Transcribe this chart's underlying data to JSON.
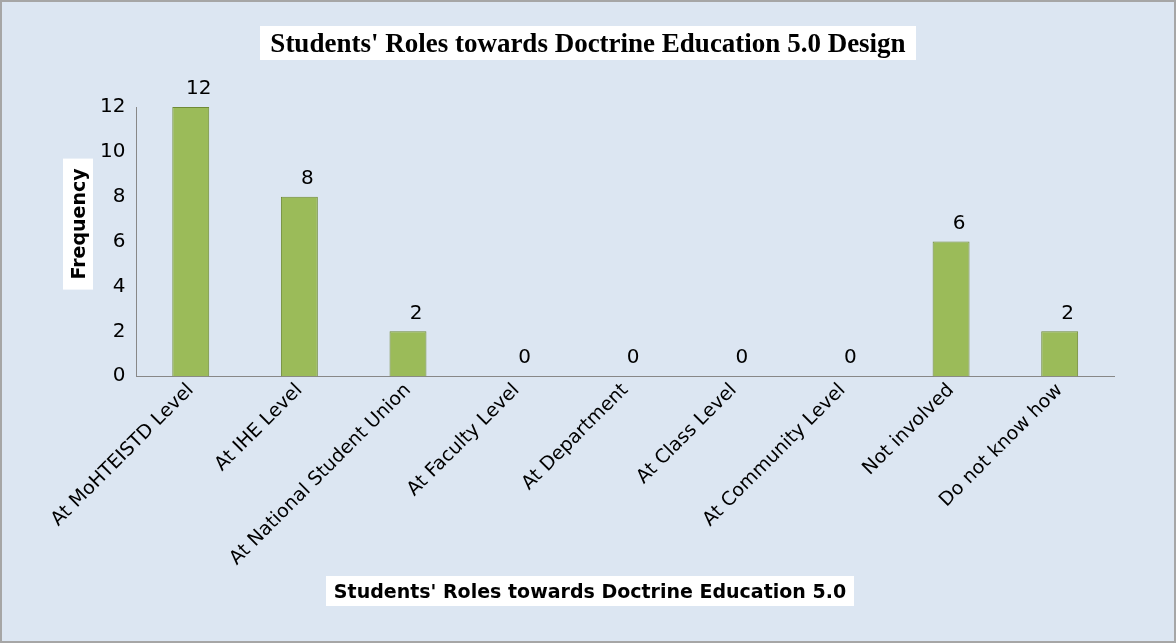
{
  "chart_data": {
    "type": "bar",
    "title": "Students' Roles towards Doctrine Education 5.0 Design",
    "xlabel": "Students' Roles towards Doctrine Education 5.0",
    "ylabel": "Frequency",
    "categories": [
      "At MoHTEISTD Level",
      "At IHE Level",
      "At National Student Union",
      "At Faculty Level",
      "At Department",
      "At Class Level",
      "At Community Level",
      "Not involved",
      "Do not know how"
    ],
    "values": [
      12,
      8,
      2,
      0,
      0,
      0,
      0,
      6,
      2
    ],
    "color": "#9bbb59",
    "ylim": [
      0,
      12
    ],
    "yticks": [
      0,
      2,
      4,
      6,
      8,
      10,
      12
    ],
    "grid": false,
    "data_labels": true
  }
}
